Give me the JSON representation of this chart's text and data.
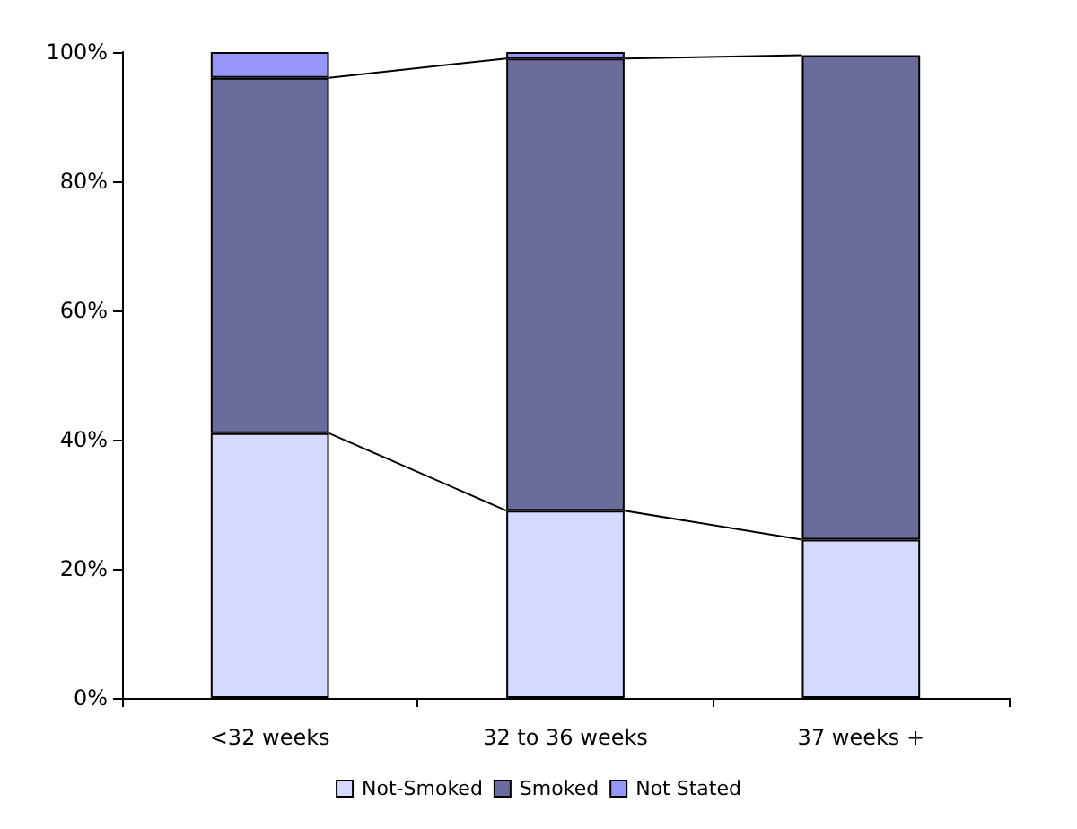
{
  "chart_data": {
    "type": "bar",
    "stacked": true,
    "categories": [
      "<32 weeks",
      "32 to 36 weeks",
      "37 weeks +"
    ],
    "series": [
      {
        "name": "Not-Smoked",
        "color": "#d6d8fe",
        "values": [
          41,
          29,
          24.5
        ]
      },
      {
        "name": "Smoked",
        "color": "#6c6c9c",
        "values": [
          55,
          70,
          75
        ]
      },
      {
        "name": "Not Stated",
        "color": "#9696f8",
        "values": [
          4,
          1,
          null
        ]
      }
    ],
    "ylim": [
      0,
      100
    ],
    "yticks": [
      {
        "value": 0,
        "label": "0%"
      },
      {
        "value": 20,
        "label": "20%"
      },
      {
        "value": 40,
        "label": "40%"
      },
      {
        "value": 60,
        "label": "60%"
      },
      {
        "value": 80,
        "label": "80%"
      },
      {
        "value": 100,
        "label": "100%"
      }
    ],
    "grid": false,
    "legend": "bottom"
  }
}
